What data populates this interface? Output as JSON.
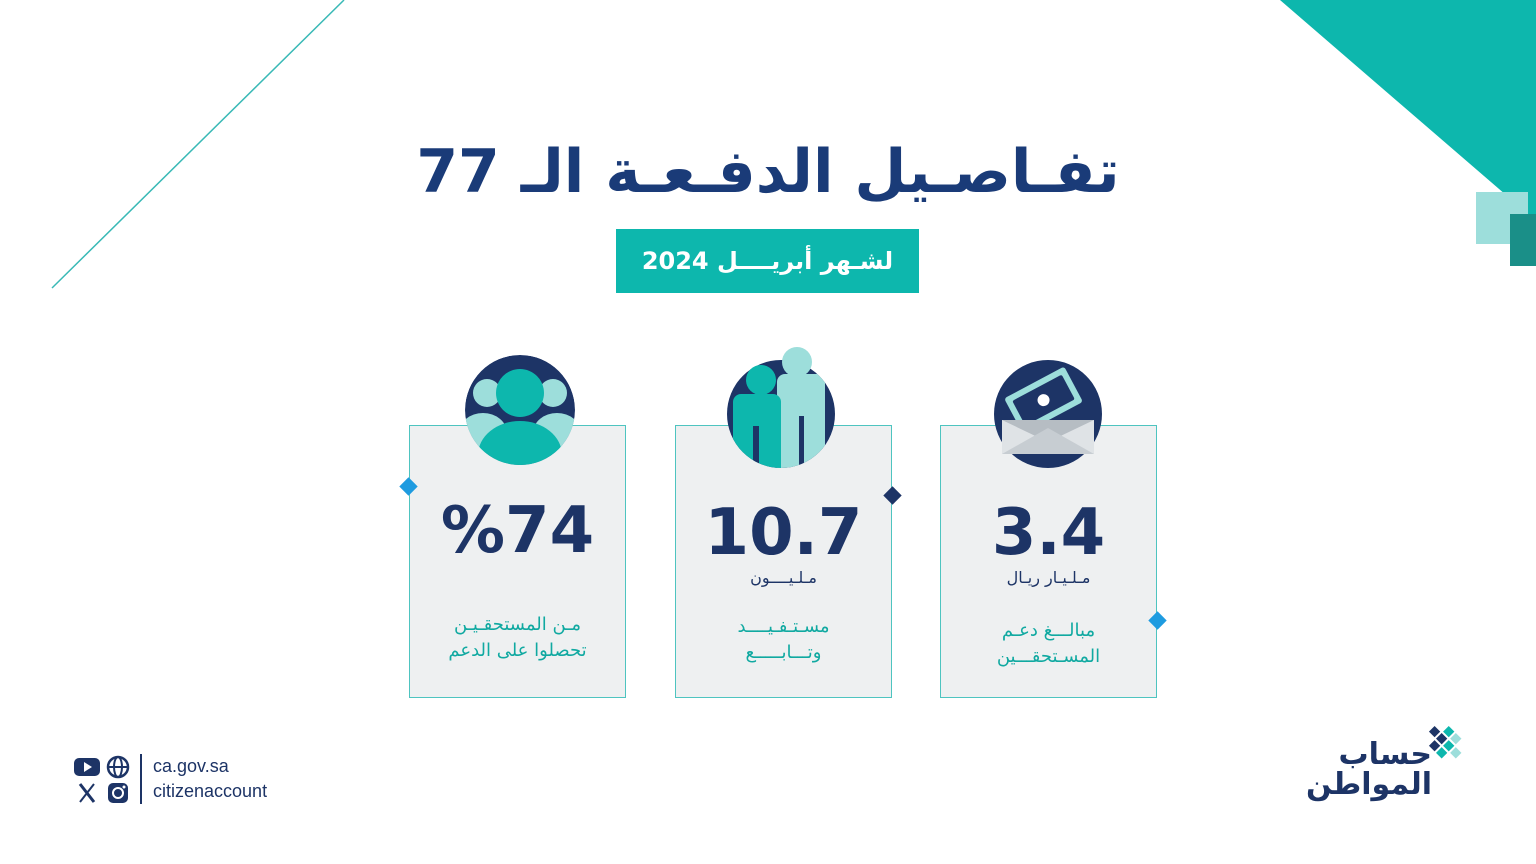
{
  "title": "تفـاصـيل الدفـعـة الـ 77",
  "subtitle": "لشـهر أبريــــل 2024",
  "colors": {
    "navy": "#1d3466",
    "teal": "#0db7ad",
    "light_teal": "#7fd9d4",
    "card_bg": "#eef0f1"
  },
  "cards": [
    {
      "icon": "group-of-people-icon",
      "value": "%74",
      "unit": "",
      "caption": "مـن المستحقـيـن\nتحصلوا على الدعم"
    },
    {
      "icon": "two-persons-icon",
      "value": "10.7",
      "unit": "مـلـيــــون",
      "caption": "مسـتـفـيــــد\nوتـــابـــــع"
    },
    {
      "icon": "money-envelope-icon",
      "value": "3.4",
      "unit": "مـلـيـار ريـال",
      "caption": "مبالـــغ دعـم\nالمسـتحقـــين"
    }
  ],
  "footer": {
    "website": "ca.gov.sa",
    "handle": "citizenaccount",
    "social_icons": [
      "youtube-icon",
      "globe-icon",
      "x-icon",
      "instagram-icon"
    ]
  },
  "logo": {
    "text": "حساب\nالمواطن"
  }
}
